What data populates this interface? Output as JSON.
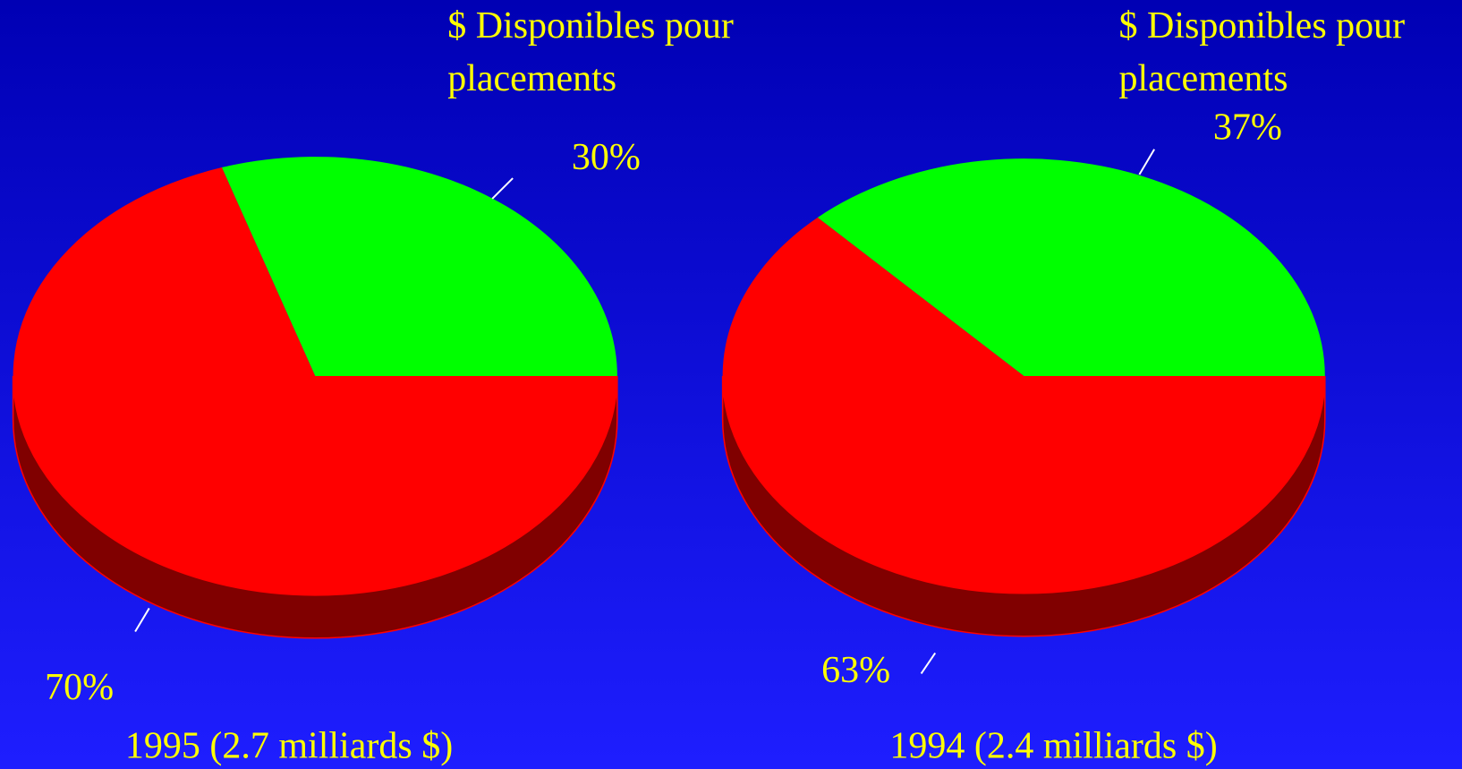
{
  "chart_data": [
    {
      "type": "pie",
      "title": "1995 (2.7 milliards $)",
      "categories": [
        "$ Disponibles pour placements",
        null
      ],
      "values": [
        30,
        70
      ],
      "value_labels": [
        "30%",
        "70%"
      ],
      "colors": [
        "#00ff00",
        "#ff0000"
      ]
    },
    {
      "type": "pie",
      "title": "1994 (2.4 milliards $)",
      "categories": [
        "$ Disponibles pour placements",
        null
      ],
      "values": [
        37,
        63
      ],
      "value_labels": [
        "37%",
        "63%"
      ],
      "colors": [
        "#00ff00",
        "#ff0000"
      ]
    }
  ]
}
